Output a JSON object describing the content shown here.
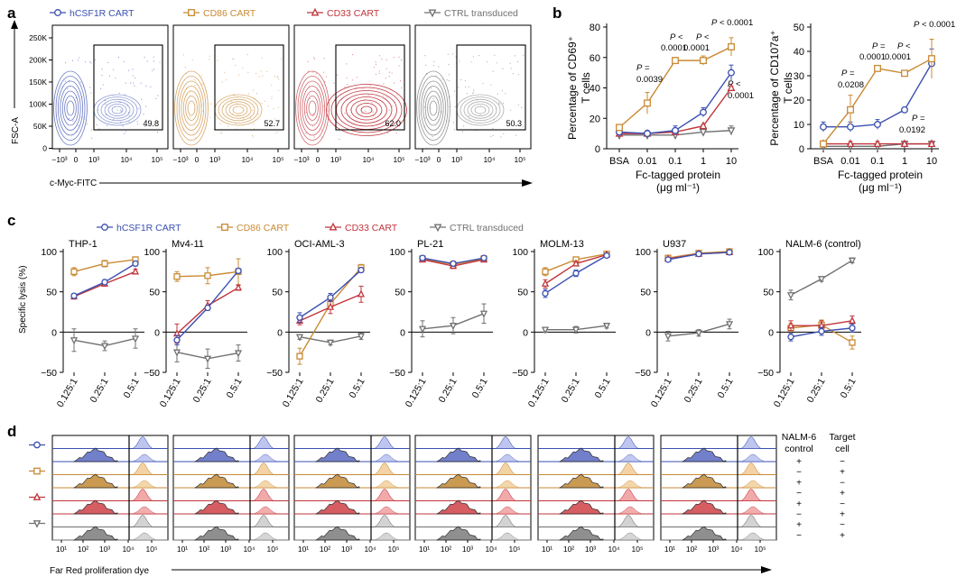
{
  "colors": {
    "hcsf1r": "#3a4fb0",
    "cd86": "#c88a34",
    "cd33": "#c0353c",
    "ctrl": "#707070"
  },
  "panel_a": {
    "letter": "a",
    "legend": [
      {
        "key": "hcsf1r",
        "marker": "circle",
        "label": "hCSF1R CART"
      },
      {
        "key": "cd86",
        "marker": "square",
        "label": "CD86 CART"
      },
      {
        "key": "cd33",
        "marker": "triangle",
        "label": "CD33 CART"
      },
      {
        "key": "ctrl",
        "marker": "inv-triangle",
        "label": "CTRL transduced"
      }
    ],
    "ylabel": "FSC-A",
    "xlabel": "c-Myc-FITC",
    "yticks": [
      "250K",
      "200K",
      "150K",
      "100K",
      "50K",
      "0"
    ],
    "xticks": [
      "−10³",
      "0",
      "10³",
      "10⁴",
      "10⁵"
    ],
    "gate_values": [
      "49.8",
      "52.7",
      "62.0",
      "50.3"
    ]
  },
  "panel_b": {
    "letter": "b",
    "x_categories": [
      "BSA",
      "0.01",
      "0.1",
      "1",
      "10"
    ],
    "xlabel_line1": "Fc-tagged protein",
    "xlabel_line2": "(μg ml⁻¹)",
    "chart_data": [
      {
        "type": "line",
        "ylabel_line1": "Percentage of CD69⁺",
        "ylabel_line2": "T cells",
        "yticks": [
          "0",
          "20",
          "40",
          "60",
          "80"
        ],
        "ylim": [
          0,
          80
        ],
        "categories": [
          "BSA",
          "0.01",
          "0.1",
          "1",
          "10"
        ],
        "series": [
          {
            "key": "hcsf1r",
            "values": [
              11,
              10,
              12,
              24,
              50
            ],
            "err": [
              2,
              2,
              3,
              3,
              5
            ]
          },
          {
            "key": "cd86",
            "values": [
              14,
              30,
              58,
              58,
              67
            ],
            "err": [
              2,
              7,
              2,
              3,
              6
            ]
          },
          {
            "key": "cd33",
            "values": [
              10,
              10,
              11,
              15,
              40
            ],
            "err": [
              1,
              1,
              1,
              1,
              1
            ]
          },
          {
            "key": "ctrl",
            "values": [
              9,
              9,
              9,
              11,
              12
            ],
            "err": [
              1,
              1,
              1,
              2,
              3
            ]
          }
        ],
        "annotations": [
          "P =",
          "0.0039",
          "P <",
          "0.0001",
          "P <",
          "0.0001",
          "P < 0.0001",
          "P <",
          "0.0001"
        ]
      },
      {
        "type": "line",
        "ylabel_line1": "Percentage of CD107a⁺",
        "ylabel_line2": "T cells",
        "yticks": [
          "0",
          "10",
          "20",
          "30",
          "40",
          "50"
        ],
        "ylim": [
          0,
          50
        ],
        "categories": [
          "BSA",
          "0.01",
          "0.1",
          "1",
          "10"
        ],
        "series": [
          {
            "key": "hcsf1r",
            "values": [
              9,
              9,
              10,
              16,
              35
            ],
            "err": [
              2,
              2,
              2,
              1,
              6
            ]
          },
          {
            "key": "cd86",
            "values": [
              2,
              16,
              33,
              31,
              37
            ],
            "err": [
              1,
              6,
              1,
              1,
              8
            ]
          },
          {
            "key": "cd33",
            "values": [
              2,
              2,
              2,
              2,
              2
            ],
            "err": [
              1,
              1,
              1,
              1,
              1
            ]
          },
          {
            "key": "ctrl",
            "values": [
              1,
              1,
              1,
              2,
              2
            ],
            "err": [
              1,
              1,
              1,
              1,
              1
            ]
          }
        ],
        "annotations": [
          "P =",
          "0.0208",
          "P =",
          "0.0001",
          "P <",
          "0.0001",
          "P < 0.0001",
          "P =",
          "0.0192"
        ]
      }
    ]
  },
  "panel_c": {
    "letter": "c",
    "legend": [
      {
        "key": "hcsf1r",
        "marker": "circle",
        "label": "hCSF1R CART"
      },
      {
        "key": "cd86",
        "marker": "square",
        "label": "CD86 CART"
      },
      {
        "key": "cd33",
        "marker": "triangle",
        "label": "CD33 CART"
      },
      {
        "key": "ctrl",
        "marker": "inv-triangle",
        "label": "CTRL transduced"
      }
    ],
    "ylabel": "Specific lysis (%)",
    "yticks": [
      "100",
      "50",
      "0",
      "−50"
    ],
    "xticks": [
      "0.125:1",
      "0.25:1",
      "0.5:1"
    ],
    "chart_data": [
      {
        "type": "line",
        "title": "THP-1",
        "ylim": [
          -50,
          100
        ],
        "series": [
          {
            "key": "hcsf1r",
            "values": [
              45,
              62,
              85
            ],
            "err": [
              3,
              3,
              3
            ]
          },
          {
            "key": "cd86",
            "values": [
              75,
              85,
              90
            ],
            "err": [
              5,
              4,
              3
            ]
          },
          {
            "key": "cd33",
            "values": [
              44,
              60,
              75
            ],
            "err": [
              3,
              3,
              3
            ]
          },
          {
            "key": "ctrl",
            "values": [
              -10,
              -17,
              -8
            ],
            "err": [
              14,
              6,
              12
            ]
          }
        ]
      },
      {
        "type": "line",
        "title": "Mv4-11",
        "ylim": [
          -50,
          100
        ],
        "series": [
          {
            "key": "hcsf1r",
            "values": [
              -10,
              30,
              76
            ],
            "err": [
              6,
              3,
              3
            ]
          },
          {
            "key": "cd86",
            "values": [
              69,
              70,
              75
            ],
            "err": [
              6,
              10,
              16
            ]
          },
          {
            "key": "cd33",
            "values": [
              -2,
              33,
              55
            ],
            "err": [
              12,
              6,
              3
            ]
          },
          {
            "key": "ctrl",
            "values": [
              -25,
              -33,
              -26
            ],
            "err": [
              12,
              12,
              10
            ]
          }
        ]
      },
      {
        "type": "line",
        "title": "OCI-AML-3",
        "ylim": [
          -50,
          100
        ],
        "series": [
          {
            "key": "hcsf1r",
            "values": [
              18,
              43,
              77
            ],
            "err": [
              6,
              5,
              3
            ]
          },
          {
            "key": "cd86",
            "values": [
              -30,
              35,
              80
            ],
            "err": [
              10,
              6,
              4
            ]
          },
          {
            "key": "cd33",
            "values": [
              14,
              31,
              47
            ],
            "err": [
              5,
              8,
              10
            ]
          },
          {
            "key": "ctrl",
            "values": [
              -6,
              -13,
              -5
            ],
            "err": [
              3,
              3,
              4
            ]
          }
        ]
      },
      {
        "type": "line",
        "title": "PL-21",
        "ylim": [
          -50,
          100
        ],
        "series": [
          {
            "key": "hcsf1r",
            "values": [
              92,
              85,
              92
            ],
            "err": [
              3,
              3,
              3
            ]
          },
          {
            "key": "cd86",
            "values": [
              91,
              84,
              91
            ],
            "err": [
              3,
              3,
              3
            ]
          },
          {
            "key": "cd33",
            "values": [
              90,
              82,
              90
            ],
            "err": [
              3,
              3,
              3
            ]
          },
          {
            "key": "ctrl",
            "values": [
              4,
              8,
              23
            ],
            "err": [
              10,
              10,
              12
            ]
          }
        ]
      },
      {
        "type": "line",
        "title": "MOLM-13",
        "ylim": [
          -50,
          100
        ],
        "series": [
          {
            "key": "hcsf1r",
            "values": [
              48,
              73,
              95
            ],
            "err": [
              5,
              4,
              2
            ]
          },
          {
            "key": "cd86",
            "values": [
              75,
              90,
              97
            ],
            "err": [
              5,
              3,
              2
            ]
          },
          {
            "key": "cd33",
            "values": [
              60,
              85,
              96
            ],
            "err": [
              5,
              3,
              2
            ]
          },
          {
            "key": "ctrl",
            "values": [
              3,
              3,
              8
            ],
            "err": [
              3,
              4,
              3
            ]
          }
        ]
      },
      {
        "type": "line",
        "title": "U937",
        "ylim": [
          -50,
          100
        ],
        "series": [
          {
            "key": "hcsf1r",
            "values": [
              90,
              97,
              99
            ],
            "err": [
              2,
              1,
              1
            ]
          },
          {
            "key": "cd86",
            "values": [
              92,
              98,
              100
            ],
            "err": [
              2,
              1,
              1
            ]
          },
          {
            "key": "cd33",
            "values": [
              91,
              97,
              99
            ],
            "err": [
              2,
              1,
              1
            ]
          },
          {
            "key": "ctrl",
            "values": [
              -5,
              -1,
              10
            ],
            "err": [
              6,
              4,
              6
            ]
          }
        ]
      },
      {
        "type": "line",
        "title": "NALM-6 (control)",
        "ylim": [
          -50,
          100
        ],
        "series": [
          {
            "key": "hcsf1r",
            "values": [
              -6,
              1,
              5
            ],
            "err": [
              5,
              5,
              5
            ]
          },
          {
            "key": "cd86",
            "values": [
              5,
              9,
              -13
            ],
            "err": [
              6,
              6,
              8
            ]
          },
          {
            "key": "cd33",
            "values": [
              8,
              8,
              14
            ],
            "err": [
              6,
              6,
              6
            ]
          },
          {
            "key": "ctrl",
            "values": [
              46,
              66,
              89
            ],
            "err": [
              6,
              3,
              3
            ]
          }
        ]
      }
    ]
  },
  "panel_d": {
    "letter": "d",
    "xlabel": "Far Red proliferation dye",
    "xticks": [
      "10¹",
      "10²",
      "10³",
      "10⁴",
      "10⁵"
    ],
    "row_colors": [
      "hcsf1r",
      "hcsf1r",
      "cd86",
      "cd86",
      "cd33",
      "cd33",
      "ctrl",
      "ctrl"
    ],
    "marker_rows": [
      {
        "key": "hcsf1r",
        "marker": "circle"
      },
      {
        "key": "cd86",
        "marker": "square"
      },
      {
        "key": "cd33",
        "marker": "triangle"
      },
      {
        "key": "ctrl",
        "marker": "inv-triangle"
      }
    ],
    "header_nalm_line1": "NALM-6",
    "header_nalm_line2": "control",
    "header_target_line1": "Target",
    "header_target_line2": "cell",
    "nalm_signs": [
      "+",
      "−",
      "+",
      "−",
      "+",
      "−",
      "+",
      "−"
    ],
    "target_signs": [
      "−",
      "+",
      "−",
      "+",
      "−",
      "+",
      "−",
      "+"
    ]
  }
}
